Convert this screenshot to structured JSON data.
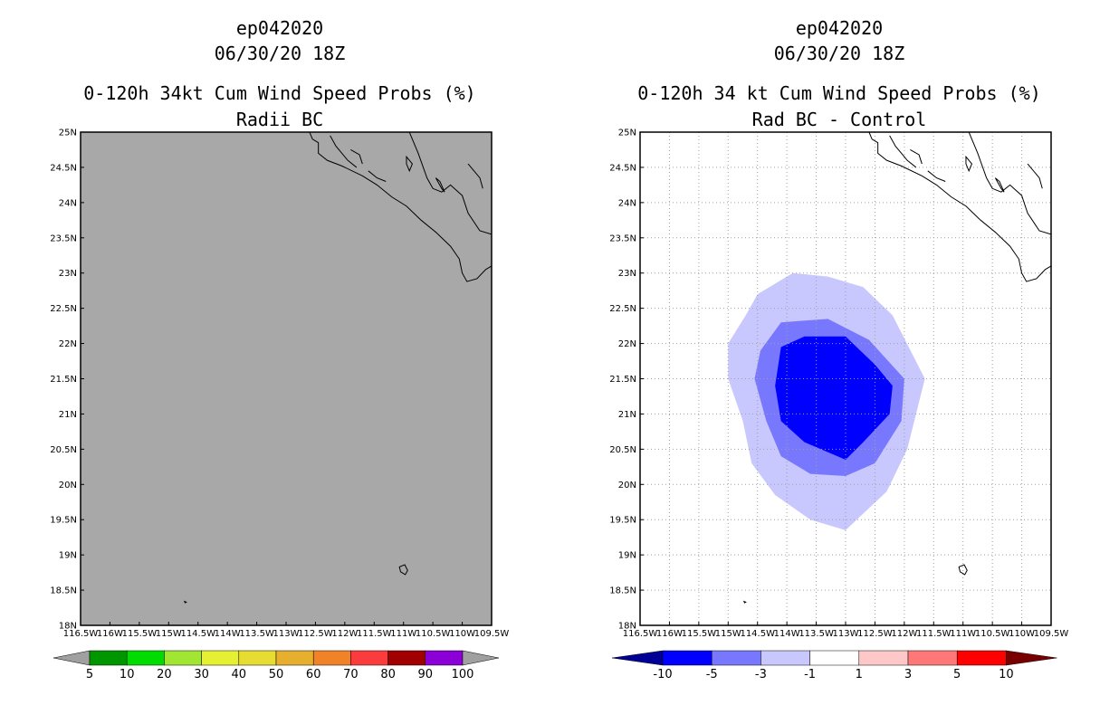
{
  "chart_data": [
    {
      "type": "heatmap",
      "storm_id": "ep042020",
      "datetime": "06/30/20 18Z",
      "title": "0-120h 34kt Cum Wind Speed Probs (%)",
      "subtitle": "Radii BC",
      "xlabels": [
        "116.5W",
        "116W",
        "115.5W",
        "115W",
        "114.5W",
        "114W",
        "113.5W",
        "113W",
        "112.5W",
        "112W",
        "111.5W",
        "111W",
        "110.5W",
        "110W",
        "109.5W"
      ],
      "ylabels": [
        "18N",
        "18.5N",
        "19N",
        "19.5N",
        "20N",
        "20.5N",
        "21N",
        "21.5N",
        "22N",
        "22.5N",
        "23N",
        "23.5N",
        "24N",
        "24.5N",
        "25N"
      ],
      "xlim": [
        -116.5,
        -109.5
      ],
      "ylim": [
        18,
        25
      ],
      "grid": false,
      "field": "uniform 0% (no probability above 5%)",
      "colorbar": {
        "labels": [
          "5",
          "10",
          "20",
          "30",
          "40",
          "50",
          "60",
          "70",
          "80",
          "90",
          "100"
        ],
        "colors": [
          "#009600",
          "#00dc00",
          "#a0e632",
          "#e6f032",
          "#e6dc32",
          "#e6af2d",
          "#f08228",
          "#fa3c3c",
          "#a00000",
          "#8c00d8"
        ],
        "under_color": "#a0a0a0",
        "over_color": "#a0a0a0"
      }
    },
    {
      "type": "heatmap",
      "storm_id": "ep042020",
      "datetime": "06/30/20 18Z",
      "title": "0-120h 34 kt Cum Wind Speed Probs (%)",
      "subtitle": "Rad BC - Control",
      "xlabels": [
        "116.5W",
        "116W",
        "115.5W",
        "115W",
        "114.5W",
        "114W",
        "113.5W",
        "113W",
        "112.5W",
        "112W",
        "111.5W",
        "111W",
        "110.5W",
        "110W",
        "109.5W"
      ],
      "ylabels": [
        "18N",
        "18.5N",
        "19N",
        "19.5N",
        "20N",
        "20.5N",
        "21N",
        "21.5N",
        "22N",
        "22.5N",
        "23N",
        "23.5N",
        "24N",
        "24.5N",
        "25N"
      ],
      "xlim": [
        -116.5,
        -109.5
      ],
      "ylim": [
        18,
        25
      ],
      "grid": true,
      "contours": [
        {
          "level": "-1 to -3",
          "color": "#c8c8ff",
          "points": [
            [
              -114.5,
              22.7
            ],
            [
              -113.9,
              23.0
            ],
            [
              -113.3,
              22.95
            ],
            [
              -112.7,
              22.8
            ],
            [
              -112.2,
              22.4
            ],
            [
              -111.65,
              21.5
            ],
            [
              -111.95,
              20.5
            ],
            [
              -112.3,
              19.9
            ],
            [
              -113.0,
              19.35
            ],
            [
              -113.6,
              19.5
            ],
            [
              -114.2,
              19.85
            ],
            [
              -114.6,
              20.3
            ],
            [
              -114.75,
              20.9
            ],
            [
              -115.0,
              21.5
            ],
            [
              -115.0,
              22.0
            ],
            [
              -114.7,
              22.4
            ]
          ]
        },
        {
          "level": "-3 to -5",
          "color": "#7878ff",
          "points": [
            [
              -114.1,
              22.3
            ],
            [
              -113.3,
              22.35
            ],
            [
              -112.6,
              22.05
            ],
            [
              -112.0,
              21.5
            ],
            [
              -112.05,
              20.9
            ],
            [
              -112.5,
              20.3
            ],
            [
              -113.0,
              20.12
            ],
            [
              -113.6,
              20.15
            ],
            [
              -114.1,
              20.4
            ],
            [
              -114.35,
              20.9
            ],
            [
              -114.55,
              21.5
            ],
            [
              -114.45,
              21.9
            ]
          ]
        },
        {
          "level": "-5 to -10",
          "color": "#0000ff",
          "points": [
            [
              -113.0,
              22.1
            ],
            [
              -112.5,
              21.7
            ],
            [
              -112.2,
              21.4
            ],
            [
              -112.25,
              21.0
            ],
            [
              -112.7,
              20.6
            ],
            [
              -113.0,
              20.35
            ],
            [
              -113.7,
              20.6
            ],
            [
              -114.1,
              20.9
            ],
            [
              -114.2,
              21.4
            ],
            [
              -114.1,
              21.95
            ],
            [
              -113.7,
              22.1
            ]
          ]
        }
      ],
      "colorbar": {
        "labels": [
          "-10",
          "-5",
          "-3",
          "-1",
          "1",
          "3",
          "5",
          "10"
        ],
        "colors": [
          "#0000ff",
          "#7878ff",
          "#c8c8ff",
          "#ffffff",
          "#ffc8c8",
          "#ff7878",
          "#ff0000"
        ],
        "under_color": "#000096",
        "over_color": "#780000"
      }
    }
  ]
}
